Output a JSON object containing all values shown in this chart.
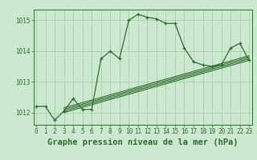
{
  "title": "Graphe pression niveau de la mer (hPa)",
  "background_color": "#cde8d0",
  "plot_bg_color": "#cde8d0",
  "line_color": "#2d6e2d",
  "grid_color": "#aacfaa",
  "hours": [
    0,
    1,
    2,
    3,
    4,
    5,
    6,
    7,
    8,
    9,
    10,
    11,
    12,
    13,
    14,
    15,
    16,
    17,
    18,
    19,
    20,
    21,
    22,
    23
  ],
  "pressure": [
    1012.2,
    1012.2,
    1011.75,
    1012.05,
    1012.45,
    1012.1,
    1012.1,
    1013.75,
    1014.0,
    1013.75,
    1015.0,
    1015.2,
    1015.1,
    1015.05,
    1014.9,
    1014.9,
    1014.1,
    1013.65,
    1013.55,
    1013.5,
    1013.55,
    1014.1,
    1014.25,
    1013.7
  ],
  "trend_lines": [
    [
      1012.0,
      1013.7
    ],
    [
      1012.05,
      1013.75
    ],
    [
      1012.1,
      1013.8
    ],
    [
      1012.15,
      1013.85
    ]
  ],
  "trend_x": [
    3,
    23
  ],
  "ylim": [
    1011.6,
    1015.35
  ],
  "xlim": [
    -0.3,
    23.3
  ],
  "yticks": [
    1012,
    1013,
    1014,
    1015
  ],
  "xticks": [
    0,
    1,
    2,
    3,
    4,
    5,
    6,
    7,
    8,
    9,
    10,
    11,
    12,
    13,
    14,
    15,
    16,
    17,
    18,
    19,
    20,
    21,
    22,
    23
  ],
  "title_fontsize": 7.5,
  "tick_fontsize": 5.5
}
